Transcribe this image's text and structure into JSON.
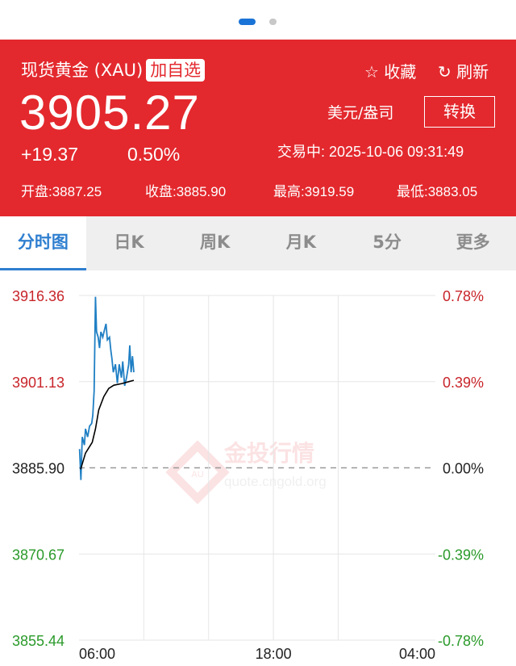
{
  "pager": {
    "pages": 2,
    "active": 1
  },
  "header": {
    "title": "现货黄金 (XAU)",
    "add_watchlist": "加自选",
    "price": "3905.27",
    "change": "+19.37",
    "change_pct": "0.50%",
    "favorite_label": "收藏",
    "refresh_label": "刷新",
    "unit": "美元/盎司",
    "convert_label": "转换",
    "status": "交易中: 2025-10-06 09:31:49",
    "stats": [
      "开盘:3887.25",
      "收盘:3885.90",
      "最高:3919.59",
      "最低:3883.05"
    ]
  },
  "tabs": [
    {
      "label": "分时图",
      "active": true
    },
    {
      "label": "日K"
    },
    {
      "label": "周K"
    },
    {
      "label": "月K"
    },
    {
      "label": "5分"
    },
    {
      "label": "更多"
    }
  ],
  "watermark": {
    "name": "金投行情",
    "url": "quote.cngold.org",
    "logo": "AU"
  },
  "colors": {
    "up": "#c8252a",
    "down": "#2a9a2a",
    "price_line": "#1f7fc4",
    "avg_line": "#000000",
    "header_bg": "#e3292e",
    "accent": "#2f7fd0"
  },
  "chart_data": {
    "type": "line",
    "ylim": [
      3855.44,
      3916.36
    ],
    "reference": 3885.9,
    "y_ticks": [
      "3916.36",
      "3901.13",
      "3885.90",
      "3870.67",
      "3855.44"
    ],
    "y_ticks_right": [
      "0.78%",
      "0.39%",
      "0.00%",
      "-0.39%",
      "-0.78%"
    ],
    "x_range": [
      "06:00",
      "04:00"
    ],
    "x_ticks": [
      "06:00",
      "18:00",
      "04:00"
    ],
    "grid": true,
    "series": [
      {
        "role": "price",
        "x": [
          "06:02",
          "06:07",
          "06:12",
          "06:20",
          "06:24",
          "06:32",
          "06:39",
          "06:47",
          "06:51",
          "06:56",
          "07:01",
          "07:05",
          "07:11",
          "07:16",
          "07:21",
          "07:28",
          "07:35",
          "07:40",
          "07:45",
          "07:53",
          "07:58",
          "08:02",
          "08:07",
          "08:15",
          "08:22",
          "08:29",
          "08:37",
          "08:42",
          "08:49",
          "08:56",
          "09:04",
          "09:08",
          "09:13",
          "09:18",
          "09:23"
        ],
        "y": [
          3889.22,
          3883.74,
          3891.36,
          3889.93,
          3892.79,
          3891.36,
          3893.26,
          3893.74,
          3895.17,
          3899.46,
          3916.12,
          3909.93,
          3908.98,
          3907.07,
          3909.93,
          3908.98,
          3910.41,
          3911.36,
          3908.5,
          3908.98,
          3906.6,
          3905.17,
          3902.79,
          3904.2,
          3900.88,
          3904.2,
          3901.83,
          3904.7,
          3900.4,
          3901.83,
          3904.2,
          3907.55,
          3902.79,
          3905.64,
          3902.79
        ]
      },
      {
        "role": "average",
        "x": [
          "06:06",
          "06:24",
          "06:49",
          "07:01",
          "07:13",
          "07:32",
          "07:50",
          "08:09",
          "08:39",
          "09:04",
          "09:23"
        ],
        "y": [
          3885.64,
          3888.5,
          3890.4,
          3892.79,
          3896.12,
          3898.5,
          3899.93,
          3900.5,
          3900.79,
          3901.12,
          3901.36
        ]
      }
    ]
  }
}
